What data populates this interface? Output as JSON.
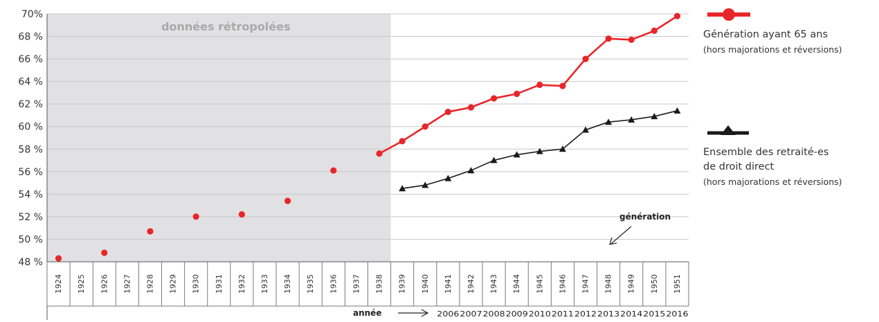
{
  "chart_data": {
    "type": "line",
    "retro_label": "données rétropolées",
    "y_ticks": [
      "48 %",
      "50 %",
      "52 %",
      "54 %",
      "56 %",
      "58 %",
      "60 %",
      "62 %",
      "64 %",
      "66 %",
      "68 %",
      "70%"
    ],
    "ylim": [
      48,
      70
    ],
    "x_categories": [
      "1924",
      "1925",
      "1926",
      "1927",
      "1928",
      "1929",
      "1930",
      "1931",
      "1932",
      "1933",
      "1934",
      "1935",
      "1936",
      "1937",
      "1938",
      "1939",
      "1940",
      "1941",
      "1942",
      "1943",
      "1944",
      "1945",
      "1946",
      "1947",
      "1948",
      "1949",
      "1950",
      "1951"
    ],
    "year_categories": [
      "2006",
      "2007",
      "2008",
      "2009",
      "2010",
      "2011",
      "2012",
      "2013",
      "2014",
      "2015",
      "2016"
    ],
    "annee_label": "année",
    "generation_label": "génération",
    "grid": "horizontal",
    "colors": {
      "red": "#e8262a",
      "black": "#1a1a1a",
      "shade": "#e1e1e3",
      "grid": "#c8c8c8"
    },
    "series": [
      {
        "name": "Génération ayant 65 ans",
        "marker": "circle",
        "color": "#e8262a",
        "x": [
          "1924",
          "1926",
          "1928",
          "1930",
          "1932",
          "1934",
          "1936",
          "1938",
          "1939",
          "1940",
          "1941",
          "1942",
          "1943",
          "1944",
          "1945",
          "1946",
          "1947",
          "1948",
          "1949",
          "1950",
          "1951"
        ],
        "values": [
          48.3,
          48.8,
          50.7,
          52.0,
          52.2,
          53.4,
          56.1,
          57.6,
          58.7,
          60.0,
          61.3,
          61.7,
          62.5,
          62.9,
          63.7,
          63.6,
          66.0,
          67.8,
          67.7,
          68.5,
          69.8
        ]
      },
      {
        "name": "Ensemble des retraité-es de droit direct",
        "marker": "triangle",
        "color": "#1a1a1a",
        "x": [
          "1939",
          "1940",
          "1941",
          "1942",
          "1943",
          "1944",
          "1945",
          "1946",
          "1947",
          "1948",
          "1949",
          "1950",
          "1951"
        ],
        "values": [
          54.5,
          54.8,
          55.4,
          56.1,
          57.0,
          57.5,
          57.8,
          58.0,
          59.7,
          60.4,
          60.6,
          60.9,
          61.4
        ]
      }
    ]
  },
  "legend": {
    "red": {
      "title": "Génération ayant 65 ans",
      "note": "(hors majorations et réversions)"
    },
    "black": {
      "title_line1": "Ensemble des retraité-es",
      "title_line2": "de droit direct",
      "note": "(hors majorations et réversions)"
    }
  }
}
